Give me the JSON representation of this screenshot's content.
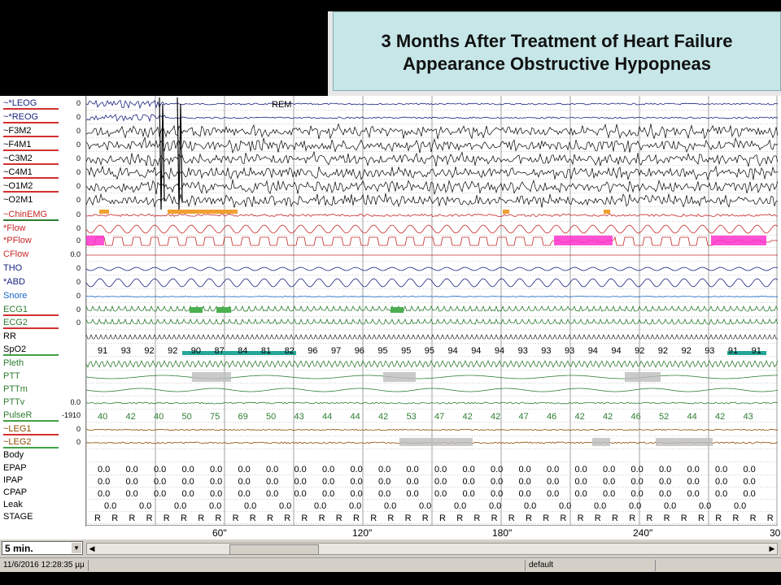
{
  "title": {
    "line1": "3 Months After Treatment of Heart Failure",
    "line2": "Appearance Obstructive Hypopneas"
  },
  "channels": [
    {
      "label": "~*LEOG",
      "zero": "0",
      "color": "#1a237e",
      "underline": "#d32f2f"
    },
    {
      "label": "~*REOG",
      "zero": "0",
      "color": "#1a237e",
      "underline": "#d32f2f"
    },
    {
      "label": "~F3M2",
      "zero": "0",
      "color": "#000000",
      "underline": "#d32f2f"
    },
    {
      "label": "~F4M1",
      "zero": "0",
      "color": "#000000",
      "underline": "#d32f2f"
    },
    {
      "label": "~C3M2",
      "zero": "0",
      "color": "#000000",
      "underline": "#d32f2f"
    },
    {
      "label": "~C4M1",
      "zero": "0",
      "color": "#000000",
      "underline": "#d32f2f"
    },
    {
      "label": "~O1M2",
      "zero": "0",
      "color": "#000000",
      "underline": "#d32f2f"
    },
    {
      "label": "~O2M1",
      "zero": "0",
      "color": "#000000",
      "underline": ""
    },
    {
      "label": "~ChinEMG",
      "zero": "0",
      "color": "#c62828",
      "underline": "#2e7d32"
    },
    {
      "label": "*Flow",
      "zero": "0",
      "color": "#c62828",
      "underline": ""
    },
    {
      "label": "*PFlow",
      "zero": "0",
      "color": "#c62828",
      "underline": ""
    },
    {
      "label": "CFlow",
      "zero": "0.0",
      "color": "#c62828",
      "underline": ""
    },
    {
      "label": "THO",
      "zero": "0",
      "color": "#1a237e",
      "underline": ""
    },
    {
      "label": "*ABD",
      "zero": "0",
      "color": "#1a237e",
      "underline": ""
    },
    {
      "label": "Snore",
      "zero": "0",
      "color": "#1565c0",
      "underline": ""
    },
    {
      "label": "ECG1",
      "zero": "0",
      "color": "#2e7d32",
      "underline": "#d32f2f"
    },
    {
      "label": "ECG2",
      "zero": "0",
      "color": "#2e7d32",
      "underline": "#d32f2f"
    },
    {
      "label": "RR",
      "zero": "",
      "color": "#000000",
      "underline": ""
    },
    {
      "label": "SpO2",
      "zero": "",
      "color": "#000000",
      "underline": "#43a047"
    },
    {
      "label": "Pleth",
      "zero": "",
      "color": "#2e7d32",
      "underline": ""
    },
    {
      "label": "PTT",
      "zero": "",
      "color": "#2e7d32",
      "underline": ""
    },
    {
      "label": "PTTm",
      "zero": "",
      "color": "#2e7d32",
      "underline": ""
    },
    {
      "label": "PTTv",
      "zero": "0.0",
      "color": "#2e7d32",
      "underline": ""
    },
    {
      "label": "PulseR",
      "zero": "-1910",
      "color": "#2e7d32",
      "underline": "#43a047"
    },
    {
      "label": "~LEG1",
      "zero": "0",
      "color": "#8d4a00",
      "underline": "#d32f2f"
    },
    {
      "label": "~LEG2",
      "zero": "0",
      "color": "#8d4a00",
      "underline": "#43a047"
    },
    {
      "label": "Body",
      "zero": "",
      "color": "#000000",
      "underline": ""
    },
    {
      "label": "EPAP",
      "zero": "",
      "color": "#000000",
      "underline": ""
    },
    {
      "label": "IPAP",
      "zero": "",
      "color": "#000000",
      "underline": ""
    },
    {
      "label": "CPAP",
      "zero": "",
      "color": "#000000",
      "underline": ""
    },
    {
      "label": "Leak",
      "zero": "",
      "color": "#000000",
      "underline": ""
    },
    {
      "label": "STAGE",
      "zero": "",
      "color": "#000000",
      "underline": ""
    }
  ],
  "rem_label": "REM",
  "spo2_values": [
    "91",
    "93",
    "92",
    "92",
    "90",
    "87",
    "84",
    "81",
    "82",
    "96",
    "97",
    "96",
    "95",
    "95",
    "95",
    "94",
    "94",
    "94",
    "93",
    "93",
    "93",
    "94",
    "94",
    "92",
    "92",
    "92",
    "93",
    "91",
    "91"
  ],
  "pulse_values": [
    "40",
    "42",
    "40",
    "50",
    "75",
    "69",
    "50",
    "43",
    "44",
    "44",
    "42",
    "53",
    "47",
    "42",
    "42",
    "47",
    "46",
    "42",
    "42",
    "46",
    "52",
    "44",
    "42",
    "43"
  ],
  "pressure_value": "0.0",
  "stage_value": "R",
  "time_ticks": [
    "60\"",
    "120\"",
    "180\"",
    "240\"",
    "30"
  ],
  "epoch": "5 min.",
  "status_timestamp": "11/6/2016 12:28:35 μμ",
  "status_default": "default",
  "colors": {
    "title_bg": "#c6e6e8",
    "event_magenta": "#ff33cc",
    "spo2_bar": "#26a69a",
    "grey_event": "#bdbdbd"
  }
}
